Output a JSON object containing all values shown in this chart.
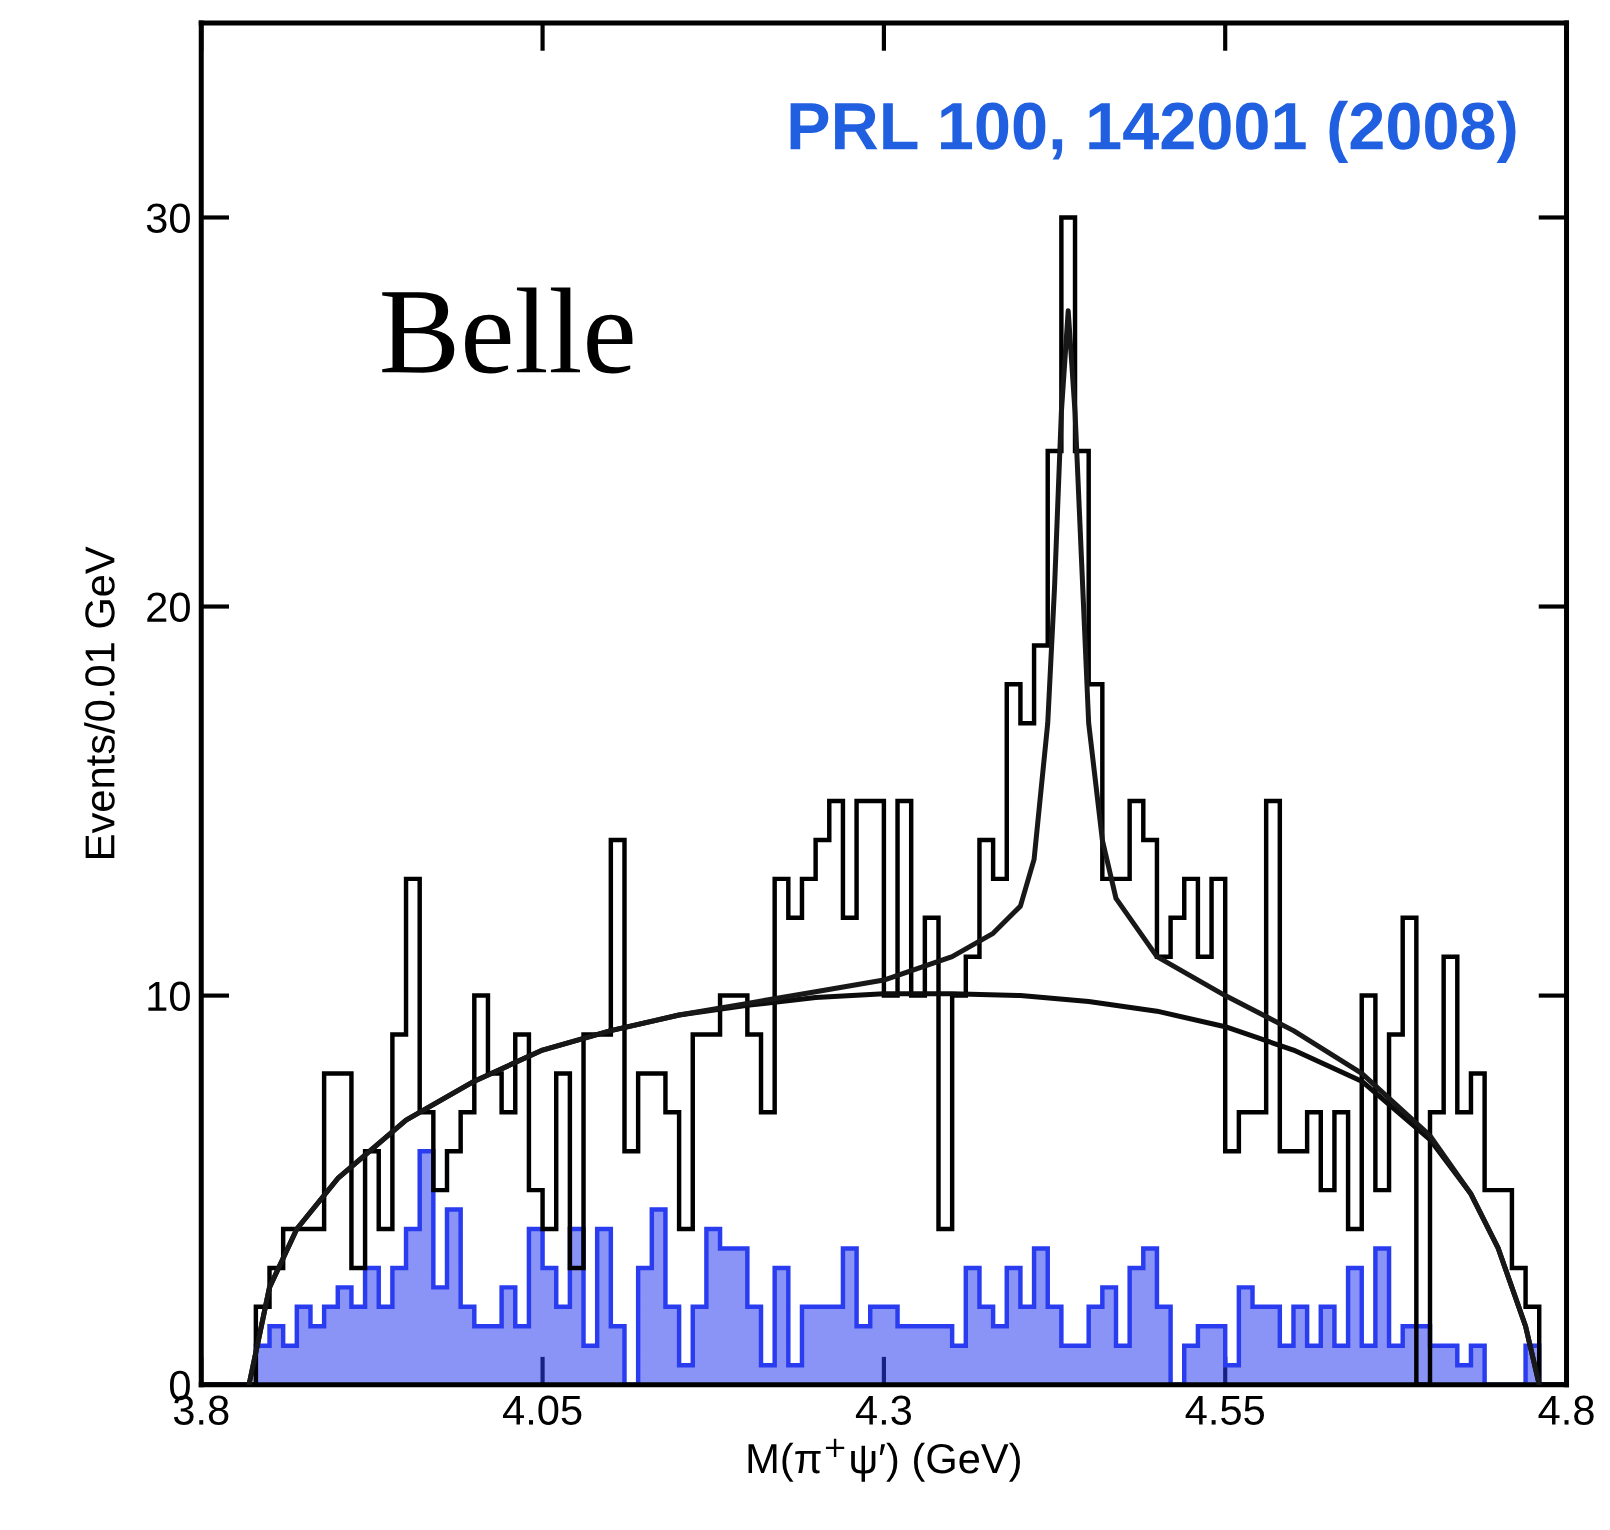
{
  "chart_data": {
    "type": "histogram",
    "xlabel": "M(π$^{+}$ψ′) (GeV)",
    "ylabel": "Events/0.01 GeV",
    "annotations": [
      "Belle",
      "PRL 100, 142001 (2008)"
    ],
    "bins": [
      3.8,
      3.81,
      3.82,
      3.83,
      3.84,
      3.85,
      3.86,
      3.87,
      3.88,
      3.89,
      3.9,
      3.91,
      3.92,
      3.93,
      3.94,
      3.95,
      3.96,
      3.97,
      3.98,
      3.99,
      4.0,
      4.01,
      4.02,
      4.03,
      4.04,
      4.05,
      4.06,
      4.07,
      4.08,
      4.09,
      4.1,
      4.11,
      4.12,
      4.13,
      4.14,
      4.15,
      4.16,
      4.17,
      4.18,
      4.19,
      4.2,
      4.21,
      4.22,
      4.23,
      4.24,
      4.25,
      4.26,
      4.27,
      4.28,
      4.29,
      4.3,
      4.31,
      4.32,
      4.33,
      4.34,
      4.35,
      4.36,
      4.37,
      4.38,
      4.39,
      4.4,
      4.41,
      4.42,
      4.43,
      4.44,
      4.45,
      4.46,
      4.47,
      4.48,
      4.49,
      4.5,
      4.51,
      4.52,
      4.53,
      4.54,
      4.55,
      4.56,
      4.57,
      4.58,
      4.59,
      4.6,
      4.61,
      4.62,
      4.63,
      4.64,
      4.65,
      4.66,
      4.67,
      4.68,
      4.69,
      4.7,
      4.71,
      4.72,
      4.73,
      4.74,
      4.75,
      4.76,
      4.77,
      4.78,
      4.79,
      4.8
    ],
    "series": [
      {
        "color": "#000000",
        "values": [
          0,
          0,
          0,
          0,
          2,
          3,
          4,
          4,
          4,
          8,
          8,
          3,
          6,
          4,
          9,
          13,
          7,
          5,
          6,
          7,
          10,
          8,
          7,
          9,
          5,
          4,
          8,
          3,
          9,
          9,
          14,
          6,
          8,
          8,
          7,
          4,
          9,
          9,
          10,
          10,
          9,
          7,
          13,
          12,
          13,
          14,
          15,
          12,
          15,
          15,
          10,
          15,
          10,
          12,
          4,
          10,
          11,
          14,
          13,
          18,
          17,
          19,
          24,
          30,
          24,
          18,
          13,
          13,
          15,
          14,
          11,
          12,
          13,
          11,
          13,
          6,
          7,
          7,
          15,
          6,
          6,
          7,
          5,
          7,
          4,
          10,
          5,
          9,
          12,
          0,
          7,
          11,
          7,
          8,
          5,
          5,
          3,
          2,
          0,
          0
        ]
      },
      {
        "color": "#2a3cf0",
        "values": [
          0,
          0,
          0,
          0,
          1,
          1.5,
          1,
          2,
          1.5,
          2,
          2.5,
          2,
          3,
          2,
          3,
          4,
          6,
          2.5,
          4.5,
          2,
          1.5,
          1.5,
          2.5,
          1.5,
          4,
          3,
          2,
          4,
          1,
          4,
          1.5,
          0,
          3,
          4.5,
          2,
          0.5,
          2,
          4,
          3.5,
          3.5,
          2,
          0.5,
          3,
          0.5,
          2,
          2,
          2,
          3.5,
          1.5,
          2,
          2,
          1.5,
          1.5,
          1.5,
          1.5,
          1,
          3,
          2,
          1.5,
          3,
          2,
          3.5,
          2,
          1,
          1,
          2,
          2.5,
          1,
          3,
          3.5,
          2,
          0,
          1,
          1.5,
          1.5,
          0.5,
          2.5,
          2,
          2,
          1,
          2,
          1,
          2,
          1,
          3,
          1,
          3.5,
          1,
          1.5,
          1.5,
          1,
          1,
          0.5,
          1,
          0,
          0,
          0,
          1,
          0,
          0
        ]
      },
      {
        "type": "line",
        "color": "#0c0c0c",
        "x": [
          3.835,
          3.85,
          3.87,
          3.9,
          3.95,
          4.0,
          4.05,
          4.1,
          4.15,
          4.2,
          4.25,
          4.3,
          4.35,
          4.4,
          4.45,
          4.5,
          4.55,
          4.6,
          4.65,
          4.7,
          4.73,
          4.75,
          4.77,
          4.78
        ],
        "values": [
          0,
          2.5,
          4,
          5.3,
          6.8,
          7.8,
          8.6,
          9.1,
          9.5,
          9.75,
          9.95,
          10.05,
          10.05,
          10.0,
          9.85,
          9.6,
          9.2,
          8.6,
          7.8,
          6.3,
          4.9,
          3.5,
          1.5,
          0
        ]
      },
      {
        "type": "line",
        "color": "#181818",
        "x": [
          3.835,
          3.85,
          3.87,
          3.9,
          3.95,
          4.0,
          4.05,
          4.1,
          4.15,
          4.2,
          4.25,
          4.3,
          4.35,
          4.38,
          4.4,
          4.41,
          4.42,
          4.425,
          4.43,
          4.435,
          4.44,
          4.445,
          4.45,
          4.46,
          4.47,
          4.5,
          4.55,
          4.6,
          4.65,
          4.7,
          4.73,
          4.75,
          4.77,
          4.78
        ],
        "values": [
          0,
          2.5,
          4,
          5.3,
          6.8,
          7.8,
          8.6,
          9.1,
          9.5,
          9.8,
          10.1,
          10.4,
          11,
          11.6,
          12.3,
          13.5,
          17,
          20.5,
          25,
          27.6,
          25,
          21,
          17,
          14,
          12.5,
          11,
          10,
          9.1,
          8,
          6.4,
          4.9,
          3.5,
          1.5,
          0
        ]
      }
    ],
    "xlim": [
      3.8,
      4.8
    ],
    "xticks": [
      3.8,
      4.05,
      4.3,
      4.55,
      4.8
    ],
    "ylim": [
      0,
      35
    ],
    "yticks": [
      0,
      10,
      20,
      30
    ],
    "grid": false
  }
}
